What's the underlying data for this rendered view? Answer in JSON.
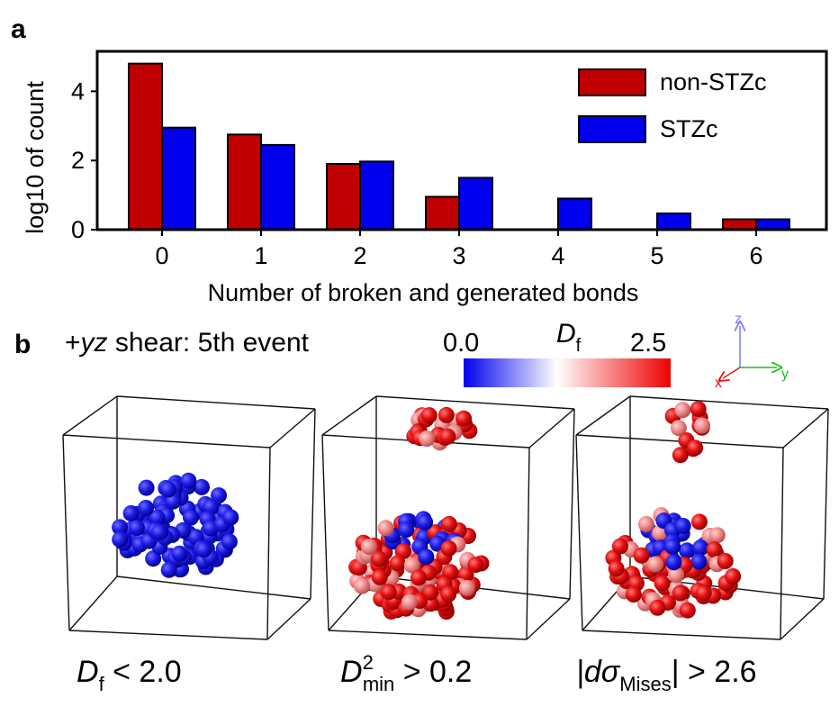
{
  "panel_a_label": "a",
  "panel_b_label": "b",
  "chart_data": {
    "type": "bar",
    "title": "",
    "xlabel": "Number of broken and generated bonds",
    "ylabel": "log10 of count",
    "categories": [
      "0",
      "1",
      "2",
      "3",
      "4",
      "5",
      "6"
    ],
    "series": [
      {
        "name": "non-STZc",
        "color": "#c00000",
        "values": [
          4.8,
          2.75,
          1.9,
          0.95,
          null,
          null,
          0.3
        ]
      },
      {
        "name": "STZc",
        "color": "#0000ee",
        "values": [
          2.95,
          2.45,
          1.97,
          1.5,
          0.9,
          0.47,
          0.3
        ]
      }
    ],
    "ylim": [
      0,
      5
    ],
    "yticks": [
      "0",
      "2",
      "4"
    ],
    "legend": "top-right"
  },
  "panel_b": {
    "shear_prefix": "+",
    "shear_axes": "yz",
    "shear_suffix": " shear: 5th event",
    "colorbar": {
      "min_label": "0.0",
      "max_label": "2.5",
      "symbol": "D",
      "subscript": "f",
      "colors": [
        "#0000ee",
        "#ffffff",
        "#ee0000"
      ]
    },
    "axes_triad": {
      "x": "x",
      "y": "y",
      "z": "z"
    },
    "captions": [
      {
        "sym": "D",
        "sub": "f",
        "rest": " < 2.0"
      },
      {
        "sym": "D",
        "sup": "2",
        "sub": "min",
        "rest": " > 0.2"
      },
      {
        "open": "|d",
        "sym": "σ",
        "sub": "Mises",
        "rest": "| > 2.6"
      }
    ]
  }
}
